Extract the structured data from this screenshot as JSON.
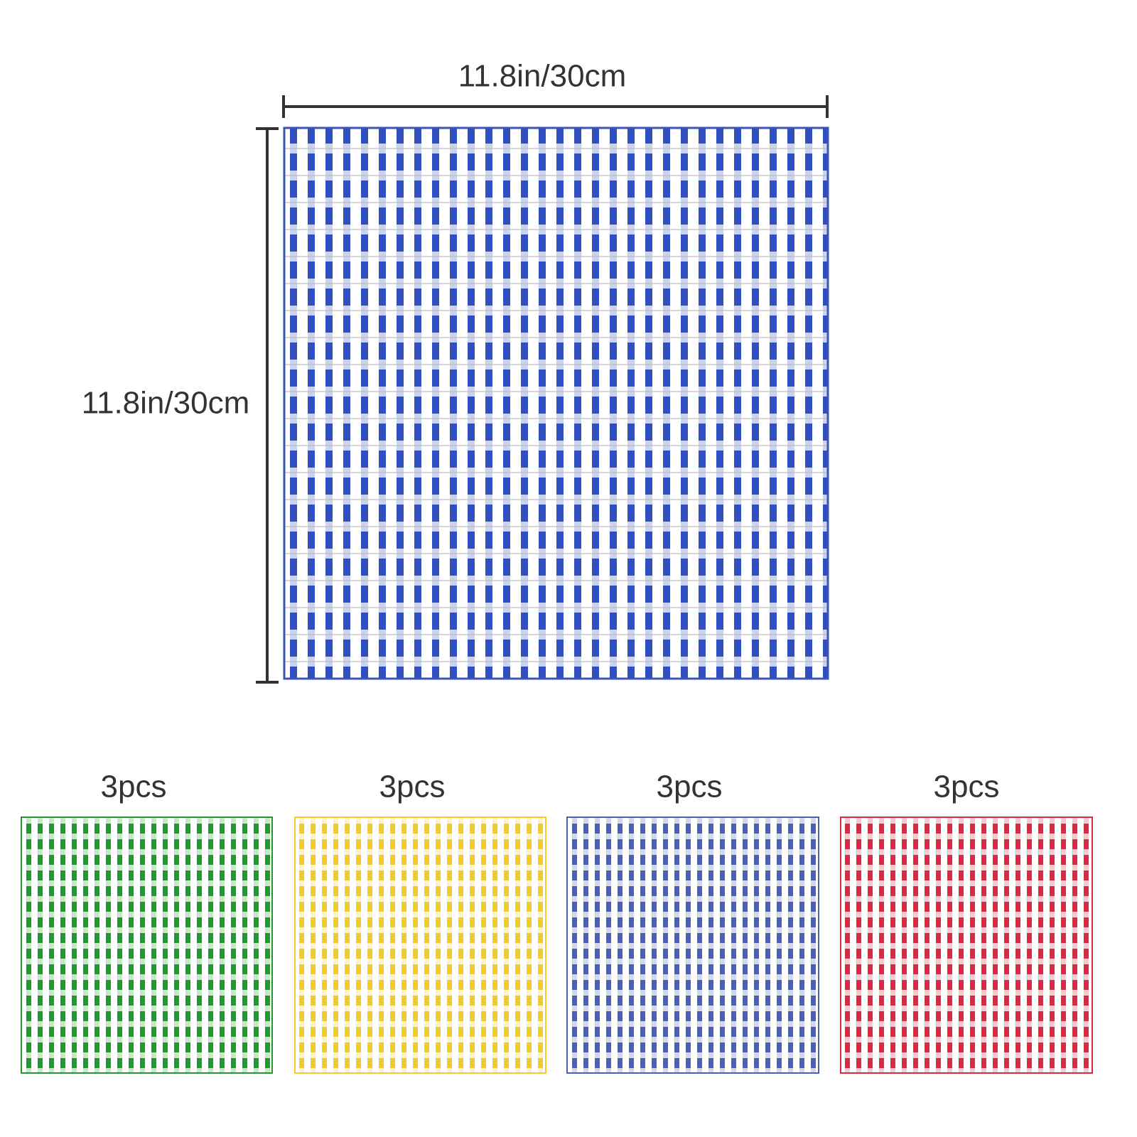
{
  "dimensions": {
    "width": "11.8in/30cm",
    "height": "11.8in/30cm"
  },
  "variants": [
    {
      "quantity": "3pcs"
    },
    {
      "quantity": "3pcs"
    },
    {
      "quantity": "3pcs"
    },
    {
      "quantity": "3pcs"
    }
  ]
}
